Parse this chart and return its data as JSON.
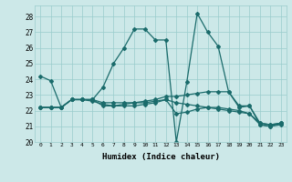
{
  "xlabel": "Humidex (Indice chaleur)",
  "background_color": "#cce8e8",
  "grid_color": "#99cccc",
  "line_color": "#1a6b6b",
  "xlim": [
    -0.5,
    23.5
  ],
  "ylim": [
    20,
    28.7
  ],
  "yticks": [
    20,
    21,
    22,
    23,
    24,
    25,
    26,
    27,
    28
  ],
  "xticks": [
    0,
    1,
    2,
    3,
    4,
    5,
    6,
    7,
    8,
    9,
    10,
    11,
    12,
    13,
    14,
    15,
    16,
    17,
    18,
    19,
    20,
    21,
    22,
    23
  ],
  "series": [
    [
      24.2,
      23.9,
      22.2,
      22.7,
      22.7,
      22.7,
      23.5,
      25.0,
      26.0,
      27.2,
      27.2,
      26.5,
      26.5,
      20.0,
      23.8,
      28.2,
      27.0,
      26.1,
      23.2,
      22.2,
      22.3,
      21.1,
      21.0,
      21.2
    ],
    [
      22.2,
      22.2,
      22.2,
      22.7,
      22.7,
      22.7,
      22.5,
      22.5,
      22.5,
      22.5,
      22.6,
      22.7,
      22.9,
      22.9,
      23.0,
      23.1,
      23.2,
      23.2,
      23.2,
      22.3,
      22.3,
      21.2,
      21.1,
      21.2
    ],
    [
      22.2,
      22.2,
      22.2,
      22.7,
      22.7,
      22.6,
      22.4,
      22.3,
      22.3,
      22.3,
      22.4,
      22.5,
      22.7,
      21.8,
      21.9,
      22.1,
      22.2,
      22.1,
      22.0,
      21.9,
      21.8,
      21.1,
      21.0,
      21.1
    ],
    [
      22.2,
      22.2,
      22.2,
      22.7,
      22.7,
      22.7,
      22.3,
      22.3,
      22.4,
      22.5,
      22.5,
      22.6,
      22.7,
      22.5,
      22.4,
      22.3,
      22.2,
      22.2,
      22.1,
      22.0,
      21.8,
      21.2,
      21.1,
      21.2
    ]
  ]
}
